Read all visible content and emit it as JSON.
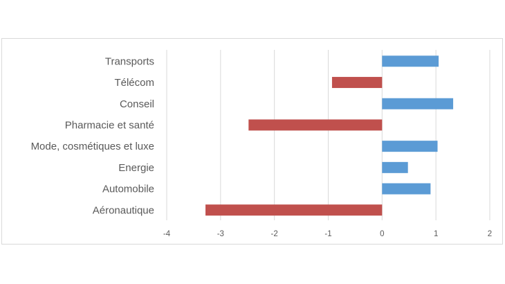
{
  "chart_data": {
    "type": "bar",
    "orientation": "horizontal",
    "title": "",
    "xlabel": "",
    "ylabel": "",
    "categories": [
      "Transports",
      "Télécom",
      "Conseil",
      "Pharmacie et santé",
      "Mode, cosmétiques et luxe",
      "Energie",
      "Automobile",
      "Aéronautique"
    ],
    "values": [
      1.05,
      -0.93,
      1.32,
      -2.48,
      1.03,
      0.48,
      0.9,
      -3.28
    ],
    "xlim": [
      -4,
      2
    ],
    "xticks": [
      "-4",
      "-3",
      "-2",
      "-1",
      "0",
      "1",
      "2"
    ],
    "grid": "vertical",
    "legend": "none",
    "colors": {
      "positive": "#5b9bd5",
      "negative": "#c0504d",
      "gridline": "#d9d9d9",
      "text": "#595959"
    }
  }
}
